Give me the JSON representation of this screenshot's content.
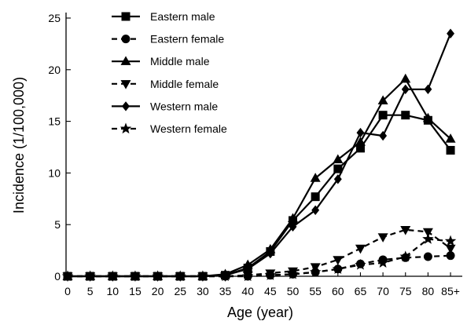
{
  "chart_data": {
    "type": "line",
    "xlabel": "Age (year)",
    "ylabel": "Incidence (1/100,000)",
    "categories": [
      "0",
      "5",
      "10",
      "15",
      "20",
      "25",
      "30",
      "35",
      "40",
      "45",
      "50",
      "55",
      "60",
      "65",
      "70",
      "75",
      "80",
      "85+"
    ],
    "ylim": [
      0,
      25
    ],
    "yticks": [
      "0",
      "5",
      "10",
      "15",
      "20",
      "25"
    ],
    "grid": false,
    "legend_position": "top-left",
    "series": [
      {
        "name": "Eastern male",
        "marker": "square",
        "dash": "solid",
        "values": [
          0,
          0,
          0,
          0,
          0,
          0,
          0,
          0.1,
          0.8,
          2.4,
          5.4,
          7.7,
          10.4,
          12.4,
          15.6,
          15.6,
          15.1,
          12.2
        ]
      },
      {
        "name": "Eastern female",
        "marker": "circle",
        "dash": "dashed",
        "values": [
          0,
          0,
          0,
          0,
          0,
          0,
          0,
          0,
          0,
          0.1,
          0.2,
          0.4,
          0.7,
          1.2,
          1.6,
          1.8,
          1.9,
          2.0
        ]
      },
      {
        "name": "Middle male",
        "marker": "triangle-up",
        "dash": "solid",
        "values": [
          0,
          0,
          0,
          0,
          0,
          0,
          0,
          0.2,
          1.1,
          2.6,
          5.6,
          9.5,
          11.3,
          13.0,
          17.0,
          19.1,
          15.3,
          13.3
        ]
      },
      {
        "name": "Middle female",
        "marker": "triangle-down",
        "dash": "dashed",
        "values": [
          0,
          0,
          0,
          0,
          0,
          0,
          0,
          0,
          0.1,
          0.3,
          0.5,
          0.9,
          1.6,
          2.7,
          3.8,
          4.5,
          4.3,
          2.7
        ]
      },
      {
        "name": "Western male",
        "marker": "diamond",
        "dash": "solid",
        "values": [
          0,
          0,
          0,
          0,
          0,
          0,
          0,
          0.1,
          0.7,
          2.2,
          4.8,
          6.4,
          9.4,
          13.9,
          13.6,
          18.1,
          18.1,
          23.5
        ]
      },
      {
        "name": "Western female",
        "marker": "star",
        "dash": "dashed",
        "values": [
          0,
          0,
          0,
          0,
          0,
          0,
          0,
          0,
          0,
          0.1,
          0.2,
          0.4,
          0.7,
          1.1,
          1.3,
          1.9,
          3.6,
          3.4
        ]
      }
    ]
  }
}
